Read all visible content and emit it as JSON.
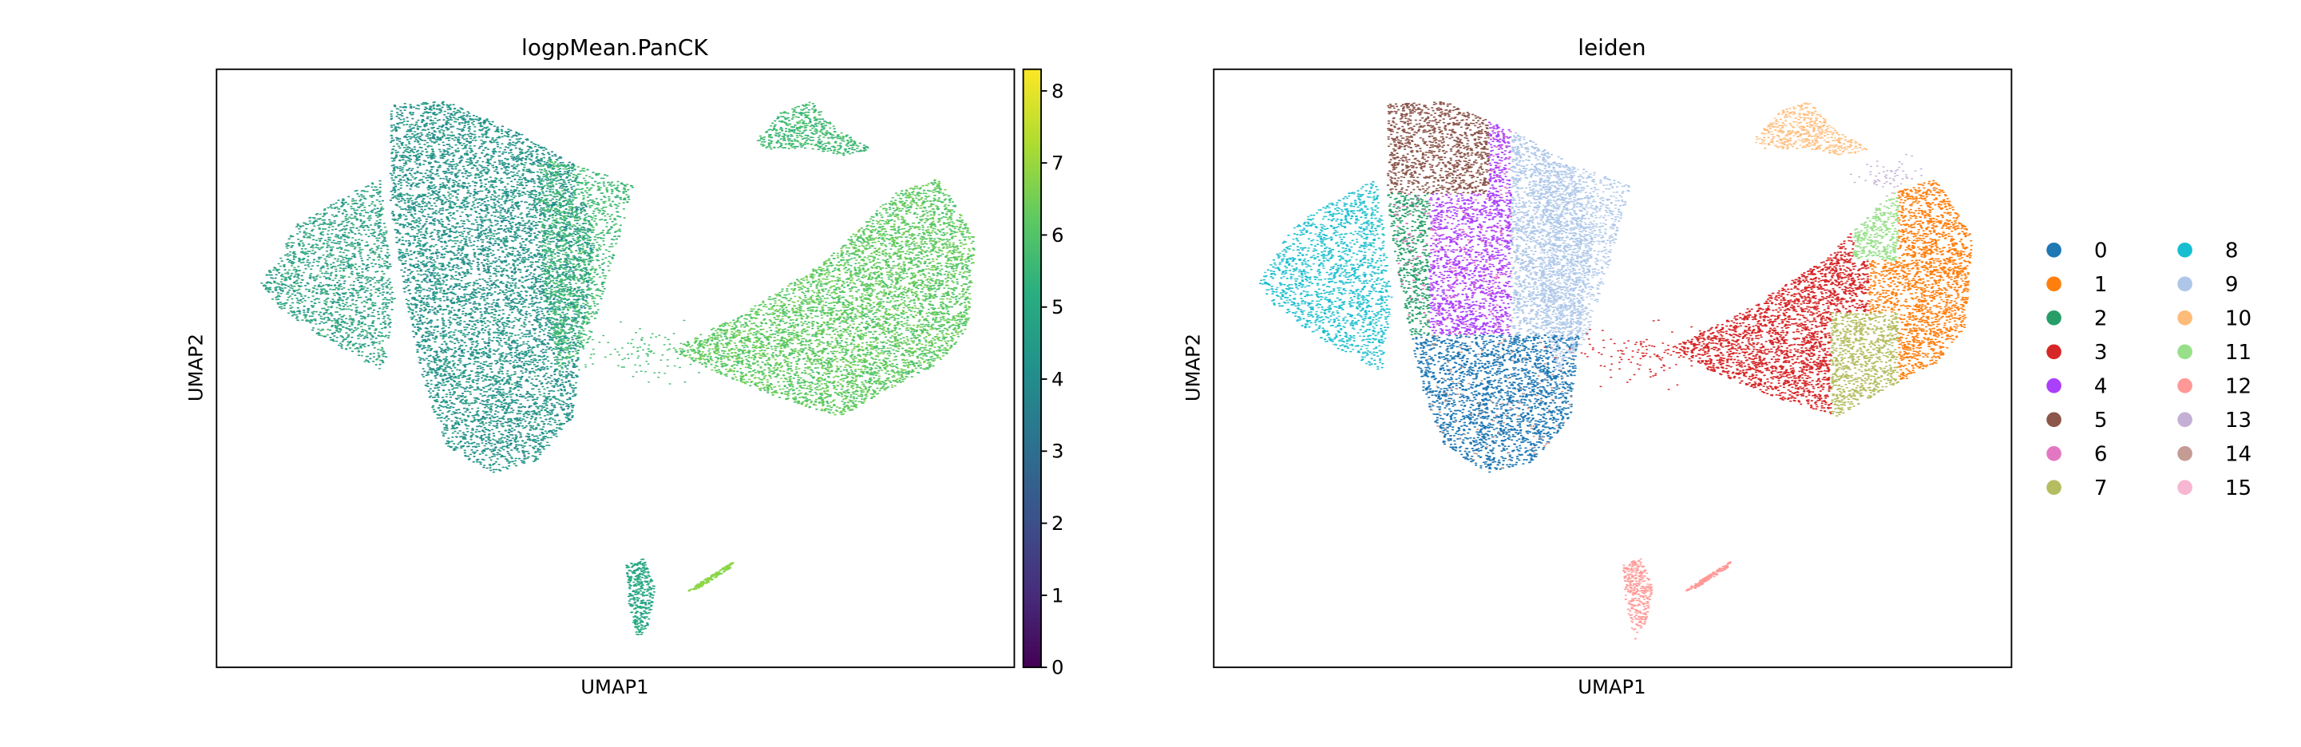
{
  "chart_data": [
    {
      "type": "scatter",
      "title": "logpMean.PanCK",
      "xlabel": "UMAP1",
      "ylabel": "UMAP2",
      "grid": false,
      "x_ticks": [],
      "y_ticks": [],
      "colorbar": {
        "colormap": "viridis",
        "range": [
          0,
          8.3
        ],
        "ticks": [
          "0",
          "1",
          "2",
          "3",
          "4",
          "5",
          "6",
          "7",
          "8"
        ]
      }
    },
    {
      "type": "scatter",
      "title": "leiden",
      "xlabel": "UMAP1",
      "ylabel": "UMAP2",
      "grid": false,
      "x_ticks": [],
      "y_ticks": [],
      "legend": {
        "placement": "right",
        "columns": 2,
        "entries": [
          {
            "label": "0",
            "color": "#1f77b4"
          },
          {
            "label": "1",
            "color": "#ff7f0e"
          },
          {
            "label": "2",
            "color": "#279e68"
          },
          {
            "label": "3",
            "color": "#d62728"
          },
          {
            "label": "4",
            "color": "#aa40fc"
          },
          {
            "label": "5",
            "color": "#8c564b"
          },
          {
            "label": "6",
            "color": "#e377c2"
          },
          {
            "label": "7",
            "color": "#b5bd61"
          },
          {
            "label": "8",
            "color": "#17becf"
          },
          {
            "label": "9",
            "color": "#aec7e8"
          },
          {
            "label": "10",
            "color": "#ffbb78"
          },
          {
            "label": "11",
            "color": "#98df8a"
          },
          {
            "label": "12",
            "color": "#ff9896"
          },
          {
            "label": "13",
            "color": "#c5b0d5"
          },
          {
            "label": "14",
            "color": "#c49c94"
          },
          {
            "label": "15",
            "color": "#f7b6d2"
          }
        ]
      }
    }
  ]
}
